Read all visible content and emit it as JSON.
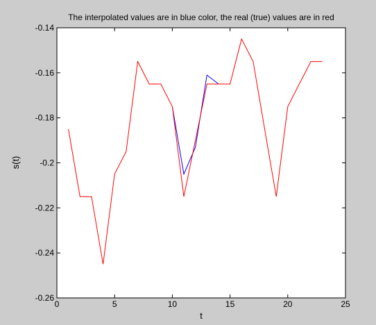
{
  "chart_data": {
    "type": "line",
    "title": "The interpolated values are in blue color, the real (true) values are in red",
    "xlabel": "t",
    "ylabel": "s(t)",
    "xlim": [
      0,
      25
    ],
    "ylim": [
      -0.26,
      -0.14
    ],
    "xticks": [
      0,
      5,
      10,
      15,
      20,
      25
    ],
    "xtick_labels": [
      "0",
      "5",
      "10",
      "15",
      "20",
      "25"
    ],
    "yticks": [
      -0.26,
      -0.24,
      -0.22,
      -0.2,
      -0.18,
      -0.16,
      -0.14
    ],
    "ytick_labels": [
      "-0.26",
      "-0.24",
      "-0.22",
      "-0.2",
      "-0.18",
      "-0.16",
      "-0.14"
    ],
    "grid": false,
    "series": [
      {
        "color": "#0000ff",
        "x": [
          10,
          11,
          12,
          13,
          14
        ],
        "y": [
          -0.175,
          -0.205,
          -0.193,
          -0.161,
          -0.165
        ]
      },
      {
        "color": "#ff0000",
        "x": [
          1,
          2,
          3,
          4,
          5,
          6,
          7,
          8,
          9,
          10,
          11,
          12,
          13,
          14,
          15,
          16,
          17,
          18,
          19,
          20,
          21,
          22,
          23
        ],
        "y": [
          -0.185,
          -0.215,
          -0.215,
          -0.245,
          -0.205,
          -0.195,
          -0.155,
          -0.165,
          -0.165,
          -0.175,
          -0.215,
          -0.19,
          -0.165,
          -0.165,
          -0.165,
          -0.145,
          -0.155,
          -0.185,
          -0.215,
          -0.175,
          -0.165,
          -0.155,
          -0.155
        ]
      }
    ]
  }
}
